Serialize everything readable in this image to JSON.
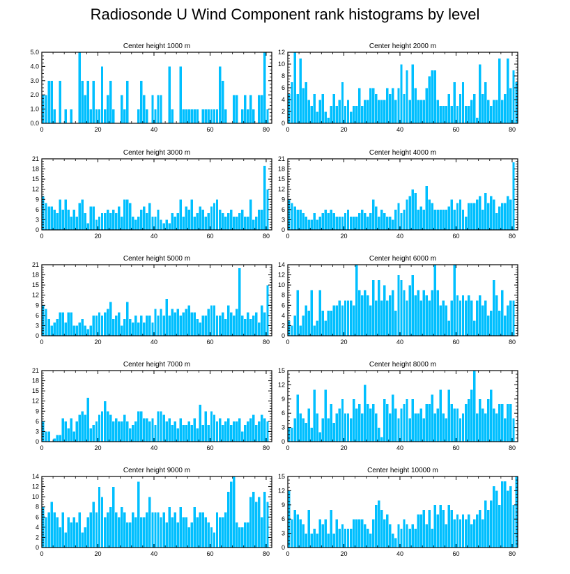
{
  "title": "Radiosonde U Wind Component rank histograms by level",
  "style": {
    "bar_color": "#00BFFF",
    "bar_edge_color": "#FFFFFF",
    "axis_color": "#000000"
  },
  "chart_data": [
    {
      "type": "bar",
      "title": "Center height 1000 m",
      "x_start": 0,
      "xlim": [
        0,
        82
      ],
      "ylim": [
        0,
        5
      ],
      "xticks": [
        0,
        20,
        40,
        60,
        80
      ],
      "yticks": [
        0,
        1,
        2,
        3,
        4,
        5
      ],
      "ytick_labels": [
        "0.0",
        "1.0",
        "2.0",
        "3.0",
        "4.0",
        "5.0"
      ],
      "values": [
        2,
        2,
        3,
        3,
        1,
        0,
        3,
        0,
        1,
        0,
        1,
        0,
        0,
        5,
        3,
        2,
        3,
        1,
        3,
        1,
        1,
        4,
        1,
        2,
        3,
        1,
        0,
        0,
        2,
        1,
        3,
        0,
        0,
        0,
        1,
        3,
        2,
        1,
        0,
        2,
        1,
        2,
        2,
        0,
        0,
        4,
        1,
        0,
        0,
        4,
        1,
        1,
        1,
        1,
        1,
        1,
        0,
        1,
        1,
        1,
        1,
        1,
        1,
        4,
        3,
        1,
        0,
        0,
        2,
        2,
        0,
        1,
        2,
        1,
        2,
        1,
        0,
        2,
        2,
        5,
        1
      ]
    },
    {
      "type": "bar",
      "title": "Center height 2000 m",
      "x_start": 0,
      "xlim": [
        0,
        82
      ],
      "ylim": [
        0,
        12
      ],
      "xticks": [
        0,
        20,
        40,
        60,
        80
      ],
      "yticks": [
        0,
        2,
        4,
        6,
        8,
        10,
        12
      ],
      "ytick_labels": [
        "0",
        "2",
        "4",
        "6",
        "8",
        "10",
        "12"
      ],
      "values": [
        5,
        7,
        12,
        5,
        11,
        6,
        7,
        4,
        3,
        5,
        2,
        4,
        5,
        2,
        1,
        3,
        5,
        3,
        4,
        7,
        3,
        4,
        2,
        3,
        3,
        6,
        3,
        4,
        4,
        6,
        6,
        5,
        4,
        4,
        4,
        6,
        5,
        6,
        4,
        6,
        10,
        5,
        9,
        4,
        10,
        6,
        4,
        4,
        4,
        6,
        8,
        9,
        9,
        4,
        3,
        3,
        3,
        5,
        3,
        7,
        3,
        5,
        7,
        3,
        3,
        4,
        5,
        1,
        10,
        5,
        7,
        4,
        3,
        4,
        4,
        11,
        4,
        5,
        11,
        6,
        9,
        7
      ]
    },
    {
      "type": "bar",
      "title": "Center height 3000 m",
      "x_start": 0,
      "xlim": [
        0,
        82
      ],
      "ylim": [
        0,
        21
      ],
      "xticks": [
        0,
        20,
        40,
        60,
        80
      ],
      "yticks": [
        0,
        3,
        6,
        9,
        12,
        15,
        18,
        21
      ],
      "ytick_labels": [
        "0",
        "3",
        "6",
        "9",
        "12",
        "15",
        "18",
        "21"
      ],
      "values": [
        10,
        8,
        7,
        7,
        6,
        5,
        9,
        6,
        9,
        6,
        4,
        6,
        4,
        8,
        9,
        5,
        2,
        7,
        7,
        3,
        4,
        5,
        5,
        6,
        5,
        6,
        5,
        7,
        4,
        9,
        9,
        8,
        4,
        3,
        4,
        6,
        7,
        5,
        8,
        4,
        4,
        6,
        3,
        2,
        3,
        2,
        5,
        4,
        5,
        9,
        4,
        7,
        6,
        9,
        4,
        5,
        7,
        6,
        4,
        5,
        7,
        8,
        9,
        6,
        5,
        4,
        5,
        6,
        4,
        4,
        5,
        6,
        4,
        4,
        9,
        3,
        4,
        6,
        6,
        19,
        12
      ]
    },
    {
      "type": "bar",
      "title": "Center height 4000 m",
      "x_start": 0,
      "xlim": [
        0,
        82
      ],
      "ylim": [
        0,
        21
      ],
      "xticks": [
        0,
        20,
        40,
        60,
        80
      ],
      "yticks": [
        0,
        3,
        6,
        9,
        12,
        15,
        18,
        21
      ],
      "ytick_labels": [
        "0",
        "3",
        "6",
        "9",
        "12",
        "15",
        "18",
        "21"
      ],
      "values": [
        9,
        8,
        7,
        6,
        6,
        5,
        4,
        3,
        3,
        5,
        3,
        4,
        5,
        6,
        5,
        6,
        5,
        4,
        4,
        4,
        5,
        6,
        4,
        4,
        4,
        5,
        6,
        5,
        4,
        5,
        9,
        7,
        4,
        6,
        5,
        4,
        4,
        3,
        6,
        8,
        5,
        6,
        9,
        10,
        12,
        11,
        6,
        7,
        6,
        13,
        9,
        8,
        6,
        6,
        6,
        6,
        6,
        7,
        9,
        6,
        8,
        9,
        6,
        4,
        8,
        8,
        8,
        9,
        10,
        6,
        11,
        8,
        10,
        9,
        5,
        7,
        8,
        8,
        10,
        9,
        20
      ]
    },
    {
      "type": "bar",
      "title": "Center height 5000 m",
      "x_start": 0,
      "xlim": [
        0,
        82
      ],
      "ylim": [
        0,
        21
      ],
      "xticks": [
        0,
        20,
        40,
        60,
        80
      ],
      "yticks": [
        0,
        3,
        6,
        9,
        12,
        15,
        18,
        21
      ],
      "ytick_labels": [
        "0",
        "3",
        "6",
        "9",
        "12",
        "15",
        "18",
        "21"
      ],
      "values": [
        9,
        8,
        5,
        3,
        4,
        5,
        7,
        7,
        4,
        7,
        7,
        3,
        3,
        4,
        5,
        3,
        2,
        3,
        6,
        6,
        7,
        6,
        7,
        8,
        10,
        5,
        6,
        7,
        3,
        5,
        10,
        5,
        4,
        6,
        4,
        6,
        4,
        6,
        6,
        4,
        8,
        6,
        8,
        6,
        11,
        6,
        8,
        7,
        8,
        6,
        7,
        8,
        9,
        7,
        7,
        5,
        4,
        6,
        6,
        8,
        9,
        9,
        6,
        6,
        7,
        5,
        9,
        7,
        6,
        8,
        20,
        6,
        5,
        7,
        5,
        6,
        7,
        4,
        9,
        7,
        15
      ]
    },
    {
      "type": "bar",
      "title": "Center height 6000 m",
      "x_start": 0,
      "xlim": [
        0,
        82
      ],
      "ylim": [
        0,
        14
      ],
      "xticks": [
        0,
        20,
        40,
        60,
        80
      ],
      "yticks": [
        0,
        2,
        4,
        6,
        8,
        10,
        12,
        14
      ],
      "ytick_labels": [
        "0",
        "2",
        "4",
        "6",
        "8",
        "10",
        "12",
        "14"
      ],
      "values": [
        3,
        2,
        4,
        9,
        2,
        4,
        6,
        5,
        9,
        2,
        3,
        9,
        5,
        3,
        5,
        5,
        6,
        6,
        7,
        6,
        7,
        7,
        7,
        6,
        14,
        9,
        8,
        9,
        8,
        6,
        11,
        7,
        11,
        7,
        10,
        7,
        8,
        9,
        5,
        12,
        11,
        9,
        7,
        10,
        12,
        8,
        9,
        7,
        9,
        8,
        7,
        9,
        14,
        9,
        6,
        7,
        6,
        3,
        7,
        14,
        8,
        7,
        8,
        7,
        8,
        7,
        3,
        7,
        8,
        6,
        7,
        4,
        5,
        11,
        8,
        5,
        9,
        4,
        6,
        7,
        7
      ]
    },
    {
      "type": "bar",
      "title": "Center height 7000 m",
      "x_start": 0,
      "xlim": [
        0,
        82
      ],
      "ylim": [
        0,
        21
      ],
      "xticks": [
        0,
        20,
        40,
        60,
        80
      ],
      "yticks": [
        0,
        3,
        6,
        9,
        12,
        15,
        18,
        21
      ],
      "ytick_labels": [
        "0",
        "3",
        "6",
        "9",
        "12",
        "15",
        "18",
        "21"
      ],
      "values": [
        6,
        3,
        3,
        0,
        1,
        2,
        2,
        7,
        6,
        4,
        7,
        3,
        6,
        8,
        9,
        8,
        13,
        4,
        5,
        6,
        8,
        9,
        12,
        9,
        8,
        6,
        7,
        6,
        6,
        8,
        6,
        4,
        5,
        6,
        9,
        9,
        7,
        7,
        6,
        7,
        5,
        9,
        9,
        8,
        6,
        7,
        5,
        6,
        4,
        7,
        5,
        5,
        6,
        5,
        7,
        4,
        11,
        5,
        9,
        5,
        9,
        8,
        6,
        7,
        5,
        6,
        7,
        5,
        6,
        6,
        7,
        3,
        5,
        6,
        7,
        8,
        5,
        6,
        8,
        7,
        6
      ]
    },
    {
      "type": "bar",
      "title": "Center height 8000 m",
      "x_start": 0,
      "xlim": [
        0,
        82
      ],
      "ylim": [
        0,
        15
      ],
      "xticks": [
        0,
        20,
        40,
        60,
        80
      ],
      "yticks": [
        0,
        3,
        6,
        9,
        12,
        15
      ],
      "ytick_labels": [
        "0",
        "3",
        "6",
        "9",
        "12",
        "15"
      ],
      "values": [
        3,
        3,
        5,
        10,
        6,
        5,
        4,
        7,
        3,
        11,
        6,
        2,
        5,
        11,
        5,
        8,
        4,
        6,
        7,
        9,
        6,
        6,
        5,
        9,
        7,
        8,
        6,
        12,
        8,
        7,
        8,
        6,
        3,
        1,
        9,
        8,
        6,
        10,
        7,
        5,
        7,
        8,
        9,
        5,
        9,
        6,
        6,
        7,
        5,
        8,
        8,
        10,
        6,
        7,
        11,
        6,
        5,
        11,
        8,
        7,
        7,
        5,
        6,
        8,
        9,
        11,
        15,
        6,
        9,
        7,
        6,
        9,
        11,
        7,
        6,
        8,
        8,
        5,
        8,
        8,
        5
      ]
    },
    {
      "type": "bar",
      "title": "Center height 9000 m",
      "x_start": 0,
      "xlim": [
        0,
        82
      ],
      "ylim": [
        0,
        14
      ],
      "xticks": [
        0,
        20,
        40,
        60,
        80
      ],
      "yticks": [
        0,
        2,
        4,
        6,
        8,
        10,
        12,
        14
      ],
      "ytick_labels": [
        "0",
        "2",
        "4",
        "6",
        "8",
        "10",
        "12",
        "14"
      ],
      "values": [
        8,
        6,
        7,
        9,
        7,
        6,
        4,
        7,
        3,
        6,
        5,
        6,
        5,
        7,
        3,
        4,
        6,
        7,
        9,
        7,
        12,
        10,
        6,
        7,
        8,
        12,
        7,
        6,
        8,
        7,
        5,
        5,
        7,
        6,
        13,
        6,
        6,
        7,
        10,
        7,
        7,
        7,
        6,
        7,
        5,
        8,
        6,
        7,
        5,
        8,
        6,
        6,
        4,
        5,
        8,
        6,
        7,
        7,
        6,
        5,
        4,
        3,
        7,
        6,
        6,
        7,
        11,
        13,
        14,
        5,
        4,
        4,
        5,
        5,
        10,
        11,
        9,
        10,
        6,
        11,
        9
      ]
    },
    {
      "type": "bar",
      "title": "Center height 10000 m",
      "x_start": 0,
      "xlim": [
        0,
        82
      ],
      "ylim": [
        0,
        15
      ],
      "xticks": [
        0,
        20,
        40,
        60,
        80
      ],
      "yticks": [
        0,
        3,
        6,
        9,
        12,
        15
      ],
      "ytick_labels": [
        "0",
        "3",
        "6",
        "9",
        "12",
        "15"
      ],
      "values": [
        12,
        6,
        8,
        7,
        6,
        5,
        3,
        8,
        3,
        4,
        3,
        6,
        5,
        6,
        3,
        8,
        3,
        6,
        4,
        5,
        4,
        4,
        4,
        6,
        6,
        6,
        6,
        5,
        4,
        3,
        6,
        9,
        10,
        8,
        6,
        7,
        5,
        3,
        2,
        5,
        4,
        6,
        5,
        4,
        5,
        4,
        7,
        7,
        8,
        5,
        8,
        4,
        9,
        7,
        9,
        8,
        5,
        9,
        8,
        6,
        7,
        6,
        7,
        6,
        7,
        5,
        6,
        7,
        8,
        6,
        10,
        8,
        10,
        13,
        12,
        9,
        14,
        14,
        12,
        13,
        9,
        15
      ]
    }
  ]
}
